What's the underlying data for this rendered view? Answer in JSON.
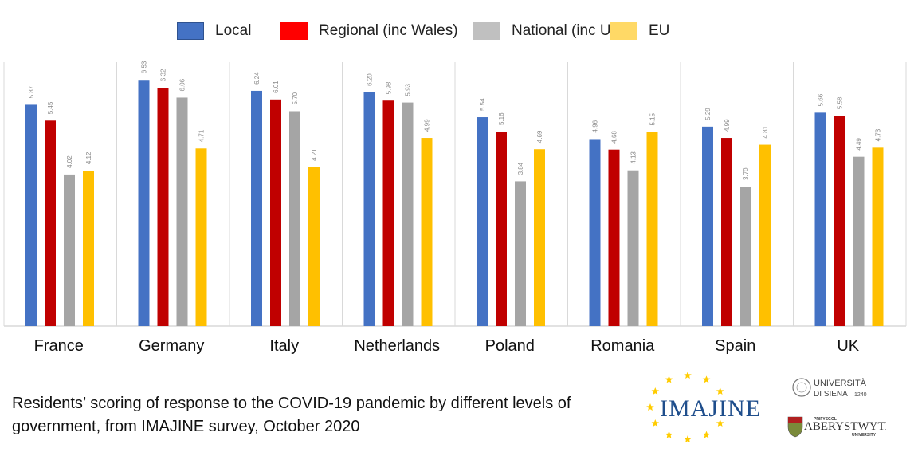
{
  "chart_data": {
    "type": "bar",
    "title": "",
    "xlabel": "",
    "ylabel": "",
    "ylim": [
      0,
      7
    ],
    "grid": false,
    "legend_position": "top-center",
    "categories": [
      "France",
      "Germany",
      "Italy",
      "Netherlands",
      "Poland",
      "Romania",
      "Spain",
      "UK"
    ],
    "series": [
      {
        "name": "Local",
        "color": "#4472C4",
        "legend_color": "#4472C4",
        "values": [
          5.87,
          6.53,
          6.24,
          6.2,
          5.54,
          4.96,
          5.29,
          5.66
        ],
        "labels": [
          "5.87",
          "6.53",
          "6.24",
          "6.20",
          "5.54",
          "4.96",
          "5.29",
          "5.66"
        ]
      },
      {
        "name": "Regional (inc Wales)",
        "color": "#C00000",
        "legend_color": "#FF0000",
        "values": [
          5.45,
          6.32,
          6.01,
          5.98,
          5.16,
          4.68,
          4.99,
          5.58
        ],
        "labels": [
          "5.45",
          "6.32",
          "6.01",
          "5.98",
          "5.16",
          "4.68",
          "4.99",
          "5.58"
        ]
      },
      {
        "name": "National (inc UK)",
        "color": "#A5A5A5",
        "legend_color": "#C0C0C0",
        "values": [
          4.02,
          6.06,
          5.7,
          5.93,
          3.84,
          4.13,
          3.7,
          4.49
        ],
        "labels": [
          "4.02",
          "6.06",
          "5.70",
          "5.93",
          "3.84",
          "4.13",
          "3.70",
          "4.49"
        ]
      },
      {
        "name": "EU",
        "color": "#FFC000",
        "legend_color": "#FFD966",
        "values": [
          4.12,
          4.71,
          4.21,
          4.99,
          4.69,
          5.15,
          4.81,
          4.73
        ],
        "labels": [
          "4.12",
          "4.71",
          "4.21",
          "4.99",
          "4.69",
          "5.15",
          "4.81",
          "4.73"
        ]
      }
    ],
    "caption": "Residents’ scoring of response to the COVID-19 pandemic by different levels of government, from IMAJINE survey, October 2020"
  },
  "logos": {
    "imajine": "IMAJINE",
    "siena_line1": "UNIVERSITÀ",
    "siena_line2": "DI SIENA",
    "siena_year": "1240",
    "aber_top": "PRIFYSGOL",
    "aber_name": "ABERYSTWYTH",
    "aber_bottom": "UNIVERSITY"
  },
  "colors": {
    "star": "#FFCC00",
    "imajine_text": "#1F4E8C",
    "axis": "#D9D9D9"
  }
}
